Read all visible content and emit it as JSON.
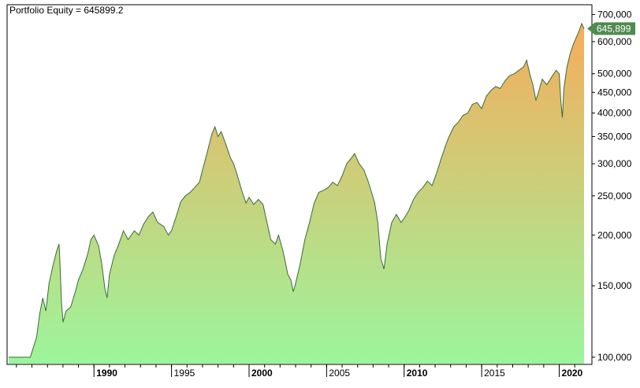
{
  "chart_data": {
    "type": "area",
    "title": "Portfolio Equity = 645899.2",
    "xlabel": "",
    "ylabel": "",
    "y_scale": "log",
    "ylim": [
      96000,
      740000
    ],
    "xlim": [
      1984.5,
      2021.6
    ],
    "grid": false,
    "legend": "none",
    "y_ticks": [
      {
        "value": 700000,
        "label": "700,000"
      },
      {
        "value": 600000,
        "label": "600,000"
      },
      {
        "value": 500000,
        "label": "500,000"
      },
      {
        "value": 450000,
        "label": "450,000"
      },
      {
        "value": 400000,
        "label": "400,000"
      },
      {
        "value": 350000,
        "label": "350,000"
      },
      {
        "value": 300000,
        "label": "300,000"
      },
      {
        "value": 250000,
        "label": "250,000"
      },
      {
        "value": 200000,
        "label": "200,000"
      },
      {
        "value": 150000,
        "label": "150,000"
      },
      {
        "value": 100000,
        "label": "100,000"
      }
    ],
    "x_ticks": [
      {
        "value": 1990,
        "label": "1990",
        "bold": true
      },
      {
        "value": 1995,
        "label": "1995",
        "bold": false
      },
      {
        "value": 2000,
        "label": "2000",
        "bold": true
      },
      {
        "value": 2005,
        "label": "2005",
        "bold": false
      },
      {
        "value": 2010,
        "label": "2010",
        "bold": true
      },
      {
        "value": 2015,
        "label": "2015",
        "bold": false
      },
      {
        "value": 2020,
        "label": "2020",
        "bold": true
      }
    ],
    "last_value_label": "645,899",
    "last_value": 645899,
    "colors": {
      "line": "#3a6b3a",
      "fill_top": "#f5ad5c",
      "fill_bottom": "#9cf59c",
      "marker": "#4f8a4f",
      "axis": "#000000"
    },
    "series": [
      {
        "values": [
          [
            1984.5,
            100000
          ],
          [
            1985.9,
            100000
          ],
          [
            1986.0,
            103000
          ],
          [
            1986.3,
            112000
          ],
          [
            1986.5,
            128000
          ],
          [
            1986.7,
            140000
          ],
          [
            1986.9,
            130000
          ],
          [
            1987.1,
            152000
          ],
          [
            1987.35,
            168000
          ],
          [
            1987.6,
            183000
          ],
          [
            1987.75,
            190000
          ],
          [
            1987.8,
            175000
          ],
          [
            1987.9,
            138000
          ],
          [
            1988.0,
            122000
          ],
          [
            1988.2,
            130000
          ],
          [
            1988.5,
            133000
          ],
          [
            1988.8,
            145000
          ],
          [
            1989.0,
            155000
          ],
          [
            1989.3,
            165000
          ],
          [
            1989.6,
            180000
          ],
          [
            1989.8,
            195000
          ],
          [
            1990.0,
            200000
          ],
          [
            1990.3,
            188000
          ],
          [
            1990.5,
            170000
          ],
          [
            1990.7,
            148000
          ],
          [
            1990.85,
            140000
          ],
          [
            1991.0,
            160000
          ],
          [
            1991.3,
            178000
          ],
          [
            1991.6,
            190000
          ],
          [
            1991.9,
            205000
          ],
          [
            1992.2,
            195000
          ],
          [
            1992.6,
            205000
          ],
          [
            1992.9,
            200000
          ],
          [
            1993.2,
            213000
          ],
          [
            1993.5,
            222000
          ],
          [
            1993.8,
            228000
          ],
          [
            1994.1,
            215000
          ],
          [
            1994.5,
            210000
          ],
          [
            1994.8,
            200000
          ],
          [
            1995.0,
            205000
          ],
          [
            1995.3,
            222000
          ],
          [
            1995.6,
            242000
          ],
          [
            1995.9,
            250000
          ],
          [
            1996.2,
            255000
          ],
          [
            1996.5,
            262000
          ],
          [
            1996.8,
            270000
          ],
          [
            1997.0,
            290000
          ],
          [
            1997.3,
            320000
          ],
          [
            1997.6,
            355000
          ],
          [
            1997.8,
            370000
          ],
          [
            1998.0,
            350000
          ],
          [
            1998.2,
            360000
          ],
          [
            1998.5,
            335000
          ],
          [
            1998.8,
            310000
          ],
          [
            1999.0,
            300000
          ],
          [
            1999.2,
            285000
          ],
          [
            1999.5,
            260000
          ],
          [
            1999.8,
            240000
          ],
          [
            2000.0,
            248000
          ],
          [
            2000.3,
            238000
          ],
          [
            2000.6,
            245000
          ],
          [
            2000.9,
            238000
          ],
          [
            2001.1,
            220000
          ],
          [
            2001.4,
            195000
          ],
          [
            2001.7,
            190000
          ],
          [
            2001.9,
            200000
          ],
          [
            2002.2,
            182000
          ],
          [
            2002.5,
            160000
          ],
          [
            2002.7,
            155000
          ],
          [
            2002.85,
            145000
          ],
          [
            2003.0,
            152000
          ],
          [
            2003.3,
            170000
          ],
          [
            2003.6,
            195000
          ],
          [
            2003.9,
            215000
          ],
          [
            2004.2,
            240000
          ],
          [
            2004.5,
            255000
          ],
          [
            2004.8,
            258000
          ],
          [
            2005.1,
            262000
          ],
          [
            2005.4,
            270000
          ],
          [
            2005.7,
            265000
          ],
          [
            2006.0,
            280000
          ],
          [
            2006.3,
            300000
          ],
          [
            2006.6,
            310000
          ],
          [
            2006.8,
            318000
          ],
          [
            2007.1,
            300000
          ],
          [
            2007.4,
            290000
          ],
          [
            2007.7,
            270000
          ],
          [
            2007.9,
            255000
          ],
          [
            2008.1,
            240000
          ],
          [
            2008.3,
            215000
          ],
          [
            2008.5,
            175000
          ],
          [
            2008.7,
            165000
          ],
          [
            2008.9,
            190000
          ],
          [
            2009.2,
            215000
          ],
          [
            2009.5,
            225000
          ],
          [
            2009.8,
            215000
          ],
          [
            2010.0,
            220000
          ],
          [
            2010.3,
            230000
          ],
          [
            2010.6,
            245000
          ],
          [
            2010.9,
            255000
          ],
          [
            2011.2,
            262000
          ],
          [
            2011.5,
            272000
          ],
          [
            2011.8,
            265000
          ],
          [
            2012.1,
            285000
          ],
          [
            2012.4,
            310000
          ],
          [
            2012.7,
            335000
          ],
          [
            2012.9,
            350000
          ],
          [
            2013.2,
            370000
          ],
          [
            2013.5,
            380000
          ],
          [
            2013.8,
            395000
          ],
          [
            2014.1,
            400000
          ],
          [
            2014.4,
            420000
          ],
          [
            2014.7,
            425000
          ],
          [
            2015.0,
            410000
          ],
          [
            2015.3,
            440000
          ],
          [
            2015.6,
            455000
          ],
          [
            2015.9,
            465000
          ],
          [
            2016.2,
            460000
          ],
          [
            2016.5,
            480000
          ],
          [
            2016.8,
            495000
          ],
          [
            2017.1,
            500000
          ],
          [
            2017.4,
            510000
          ],
          [
            2017.7,
            520000
          ],
          [
            2017.9,
            540000
          ],
          [
            2018.1,
            500000
          ],
          [
            2018.3,
            470000
          ],
          [
            2018.5,
            430000
          ],
          [
            2018.7,
            455000
          ],
          [
            2018.9,
            485000
          ],
          [
            2019.2,
            470000
          ],
          [
            2019.5,
            490000
          ],
          [
            2019.8,
            510000
          ],
          [
            2020.0,
            500000
          ],
          [
            2020.1,
            430000
          ],
          [
            2020.2,
            390000
          ],
          [
            2020.3,
            460000
          ],
          [
            2020.5,
            520000
          ],
          [
            2020.7,
            560000
          ],
          [
            2020.9,
            590000
          ],
          [
            2021.1,
            615000
          ],
          [
            2021.3,
            640000
          ],
          [
            2021.45,
            665000
          ],
          [
            2021.6,
            645899
          ]
        ]
      }
    ]
  }
}
